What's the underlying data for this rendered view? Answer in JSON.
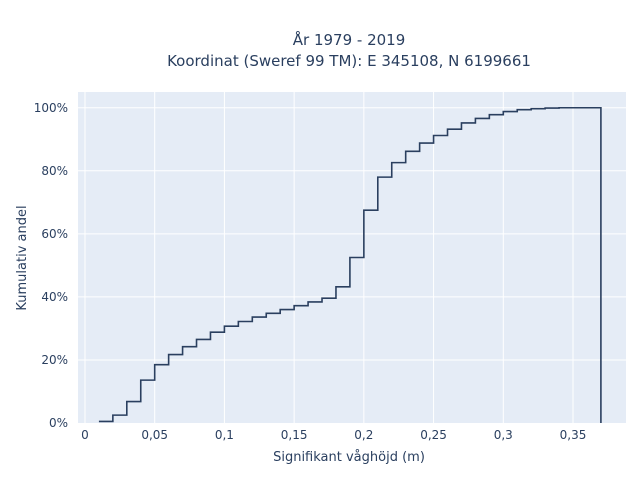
{
  "chart_data": {
    "type": "line",
    "subtype": "step-cdf",
    "title_line1": "År 1979 - 2019",
    "title_line2": "Koordinat (Sweref 99 TM): E 345108, N 6199661",
    "xlabel": "Signifikant våghöjd (m)",
    "ylabel": "Kumulativ andel",
    "xlim": [
      -0.005,
      0.388
    ],
    "ylim": [
      0,
      1.05
    ],
    "x_ticks": [
      0,
      0.05,
      0.1,
      0.15,
      0.2,
      0.25,
      0.3,
      0.35
    ],
    "x_tick_labels": [
      "0",
      "0,05",
      "0,1",
      "0,15",
      "0,2",
      "0,25",
      "0,3",
      "0,35"
    ],
    "y_ticks": [
      0,
      0.2,
      0.4,
      0.6,
      0.8,
      1.0
    ],
    "y_tick_labels": [
      "0%",
      "20%",
      "40%",
      "60%",
      "80%",
      "100%"
    ],
    "grid": true,
    "line_color": "#2a3f5f",
    "x": [
      0.01,
      0.02,
      0.03,
      0.04,
      0.05,
      0.06,
      0.07,
      0.08,
      0.09,
      0.1,
      0.11,
      0.12,
      0.13,
      0.14,
      0.15,
      0.16,
      0.17,
      0.18,
      0.19,
      0.2,
      0.21,
      0.22,
      0.23,
      0.24,
      0.25,
      0.26,
      0.27,
      0.28,
      0.29,
      0.3,
      0.31,
      0.32,
      0.33,
      0.34,
      0.35,
      0.36,
      0.37
    ],
    "y": [
      0.005,
      0.025,
      0.068,
      0.136,
      0.185,
      0.217,
      0.242,
      0.265,
      0.288,
      0.307,
      0.322,
      0.336,
      0.348,
      0.36,
      0.372,
      0.384,
      0.396,
      0.432,
      0.525,
      0.675,
      0.78,
      0.826,
      0.862,
      0.888,
      0.912,
      0.932,
      0.952,
      0.966,
      0.978,
      0.988,
      0.994,
      0.997,
      0.999,
      1.0,
      1.0,
      1.0,
      0.0
    ]
  }
}
